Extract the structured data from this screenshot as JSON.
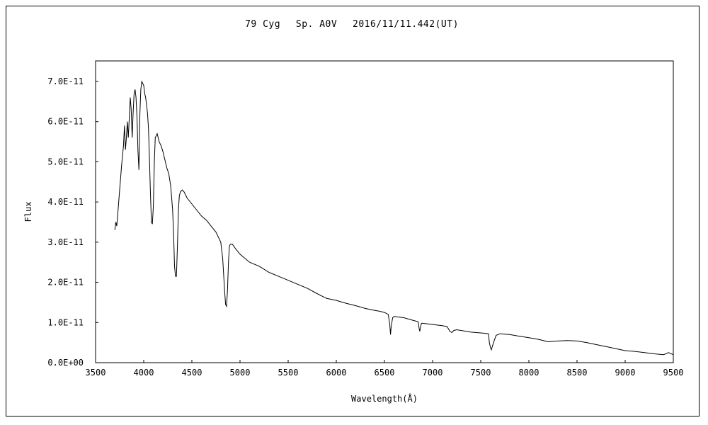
{
  "chart_data": {
    "type": "line",
    "title": "79 Cyg　 Sp. A0V　 2016/11/11.442(UT)",
    "xlabel": "Wavelength(Å)",
    "ylabel": "Flux",
    "xlim": [
      3500,
      9500
    ],
    "ylim": [
      0,
      7e-11
    ],
    "x_ticks": [
      3500,
      4000,
      4500,
      5000,
      5500,
      6000,
      6500,
      7000,
      7500,
      8000,
      8500,
      9000,
      9500
    ],
    "x_tick_labels": [
      "3500",
      "4000",
      "4500",
      "5000",
      "5500",
      "6000",
      "6500",
      "7000",
      "7500",
      "8000",
      "8500",
      "9000",
      "9500"
    ],
    "y_ticks": [
      0,
      1e-11,
      2e-11,
      3e-11,
      4e-11,
      5e-11,
      6e-11,
      7e-11
    ],
    "y_tick_labels": [
      "0.0E+00",
      "1.0E-11",
      "2.0E-11",
      "3.0E-11",
      "4.0E-11",
      "5.0E-11",
      "6.0E-11",
      "7.0E-11"
    ],
    "grid": false,
    "line_color": "#000000",
    "series": [
      {
        "x": [
          3700,
          3710,
          3720,
          3730,
          3750,
          3770,
          3790,
          3800,
          3810,
          3820,
          3830,
          3840,
          3850,
          3860,
          3870,
          3880,
          3890,
          3900,
          3910,
          3920,
          3930,
          3940,
          3950,
          3960,
          3970,
          3980,
          3990,
          4000,
          4010,
          4020,
          4030,
          4040,
          4050,
          4060,
          4070,
          4080,
          4090,
          4100,
          4110,
          4120,
          4140,
          4160,
          4180,
          4200,
          4220,
          4240,
          4260,
          4280,
          4300,
          4310,
          4320,
          4330,
          4340,
          4350,
          4360,
          4370,
          4380,
          4400,
          4420,
          4450,
          4500,
          4550,
          4600,
          4650,
          4700,
          4750,
          4780,
          4800,
          4820,
          4840,
          4850,
          4860,
          4870,
          4880,
          4890,
          4900,
          4920,
          4950,
          5000,
          5100,
          5200,
          5300,
          5400,
          5500,
          5600,
          5700,
          5800,
          5900,
          6000,
          6100,
          6200,
          6300,
          6400,
          6450,
          6500,
          6540,
          6555,
          6563,
          6570,
          6585,
          6600,
          6700,
          6800,
          6850,
          6860,
          6867,
          6875,
          6885,
          6900,
          7000,
          7100,
          7150,
          7180,
          7200,
          7220,
          7250,
          7300,
          7400,
          7500,
          7550,
          7580,
          7590,
          7600,
          7610,
          7620,
          7640,
          7660,
          7700,
          7800,
          7900,
          8000,
          8100,
          8200,
          8300,
          8400,
          8500,
          8600,
          8700,
          8800,
          8900,
          9000,
          9100,
          9200,
          9300,
          9400,
          9450,
          9500
        ],
        "y": [
          3.3e-11,
          3.5e-11,
          3.4e-11,
          3.7e-11,
          4.3e-11,
          4.9e-11,
          5.4e-11,
          5.9e-11,
          5.3e-11,
          5.6e-11,
          6e-11,
          5.6e-11,
          6.1e-11,
          6.6e-11,
          6.3e-11,
          5.6e-11,
          6.2e-11,
          6.7e-11,
          6.8e-11,
          6.6e-11,
          6.1e-11,
          5.3e-11,
          4.8e-11,
          6.2e-11,
          6.8e-11,
          7e-11,
          6.95e-11,
          6.9e-11,
          6.7e-11,
          6.6e-11,
          6.4e-11,
          6.2e-11,
          5.8e-11,
          5e-11,
          4.2e-11,
          3.5e-11,
          3.45e-11,
          3.9e-11,
          5e-11,
          5.6e-11,
          5.7e-11,
          5.5e-11,
          5.4e-11,
          5.25e-11,
          5.05e-11,
          4.85e-11,
          4.7e-11,
          4.4e-11,
          3.8e-11,
          3.2e-11,
          2.4e-11,
          2.15e-11,
          2.15e-11,
          2.9e-11,
          3.8e-11,
          4.15e-11,
          4.25e-11,
          4.3e-11,
          4.25e-11,
          4.1e-11,
          3.95e-11,
          3.8e-11,
          3.65e-11,
          3.55e-11,
          3.4e-11,
          3.25e-11,
          3.1e-11,
          3e-11,
          2.6e-11,
          1.8e-11,
          1.45e-11,
          1.4e-11,
          1.8e-11,
          2.5e-11,
          2.9e-11,
          2.95e-11,
          2.95e-11,
          2.85e-11,
          2.7e-11,
          2.5e-11,
          2.4e-11,
          2.25e-11,
          2.15e-11,
          2.05e-11,
          1.95e-11,
          1.85e-11,
          1.72e-11,
          1.6e-11,
          1.55e-11,
          1.48e-11,
          1.42e-11,
          1.35e-11,
          1.3e-11,
          1.28e-11,
          1.25e-11,
          1.2e-11,
          9.5e-12,
          7e-12,
          9e-12,
          1.12e-11,
          1.15e-11,
          1.12e-11,
          1.05e-11,
          1.02e-11,
          8.5e-12,
          7.8e-12,
          9e-12,
          9.8e-12,
          9.8e-12,
          9.5e-12,
          9.2e-12,
          9e-12,
          7.8e-12,
          7.5e-12,
          8e-12,
          8.2e-12,
          8e-12,
          7.6e-12,
          7.4e-12,
          7.3e-12,
          7.2e-12,
          5e-12,
          3.8e-12,
          3.2e-12,
          4e-12,
          5.5e-12,
          6.8e-12,
          7.2e-12,
          7e-12,
          6.6e-12,
          6.2e-12,
          5.8e-12,
          5.2e-12,
          5.4e-12,
          5.5e-12,
          5.4e-12,
          5e-12,
          4.5e-12,
          4e-12,
          3.5e-12,
          3e-12,
          2.8e-12,
          2.5e-12,
          2.2e-12,
          2e-12,
          2.5e-12,
          2e-12
        ]
      }
    ]
  }
}
